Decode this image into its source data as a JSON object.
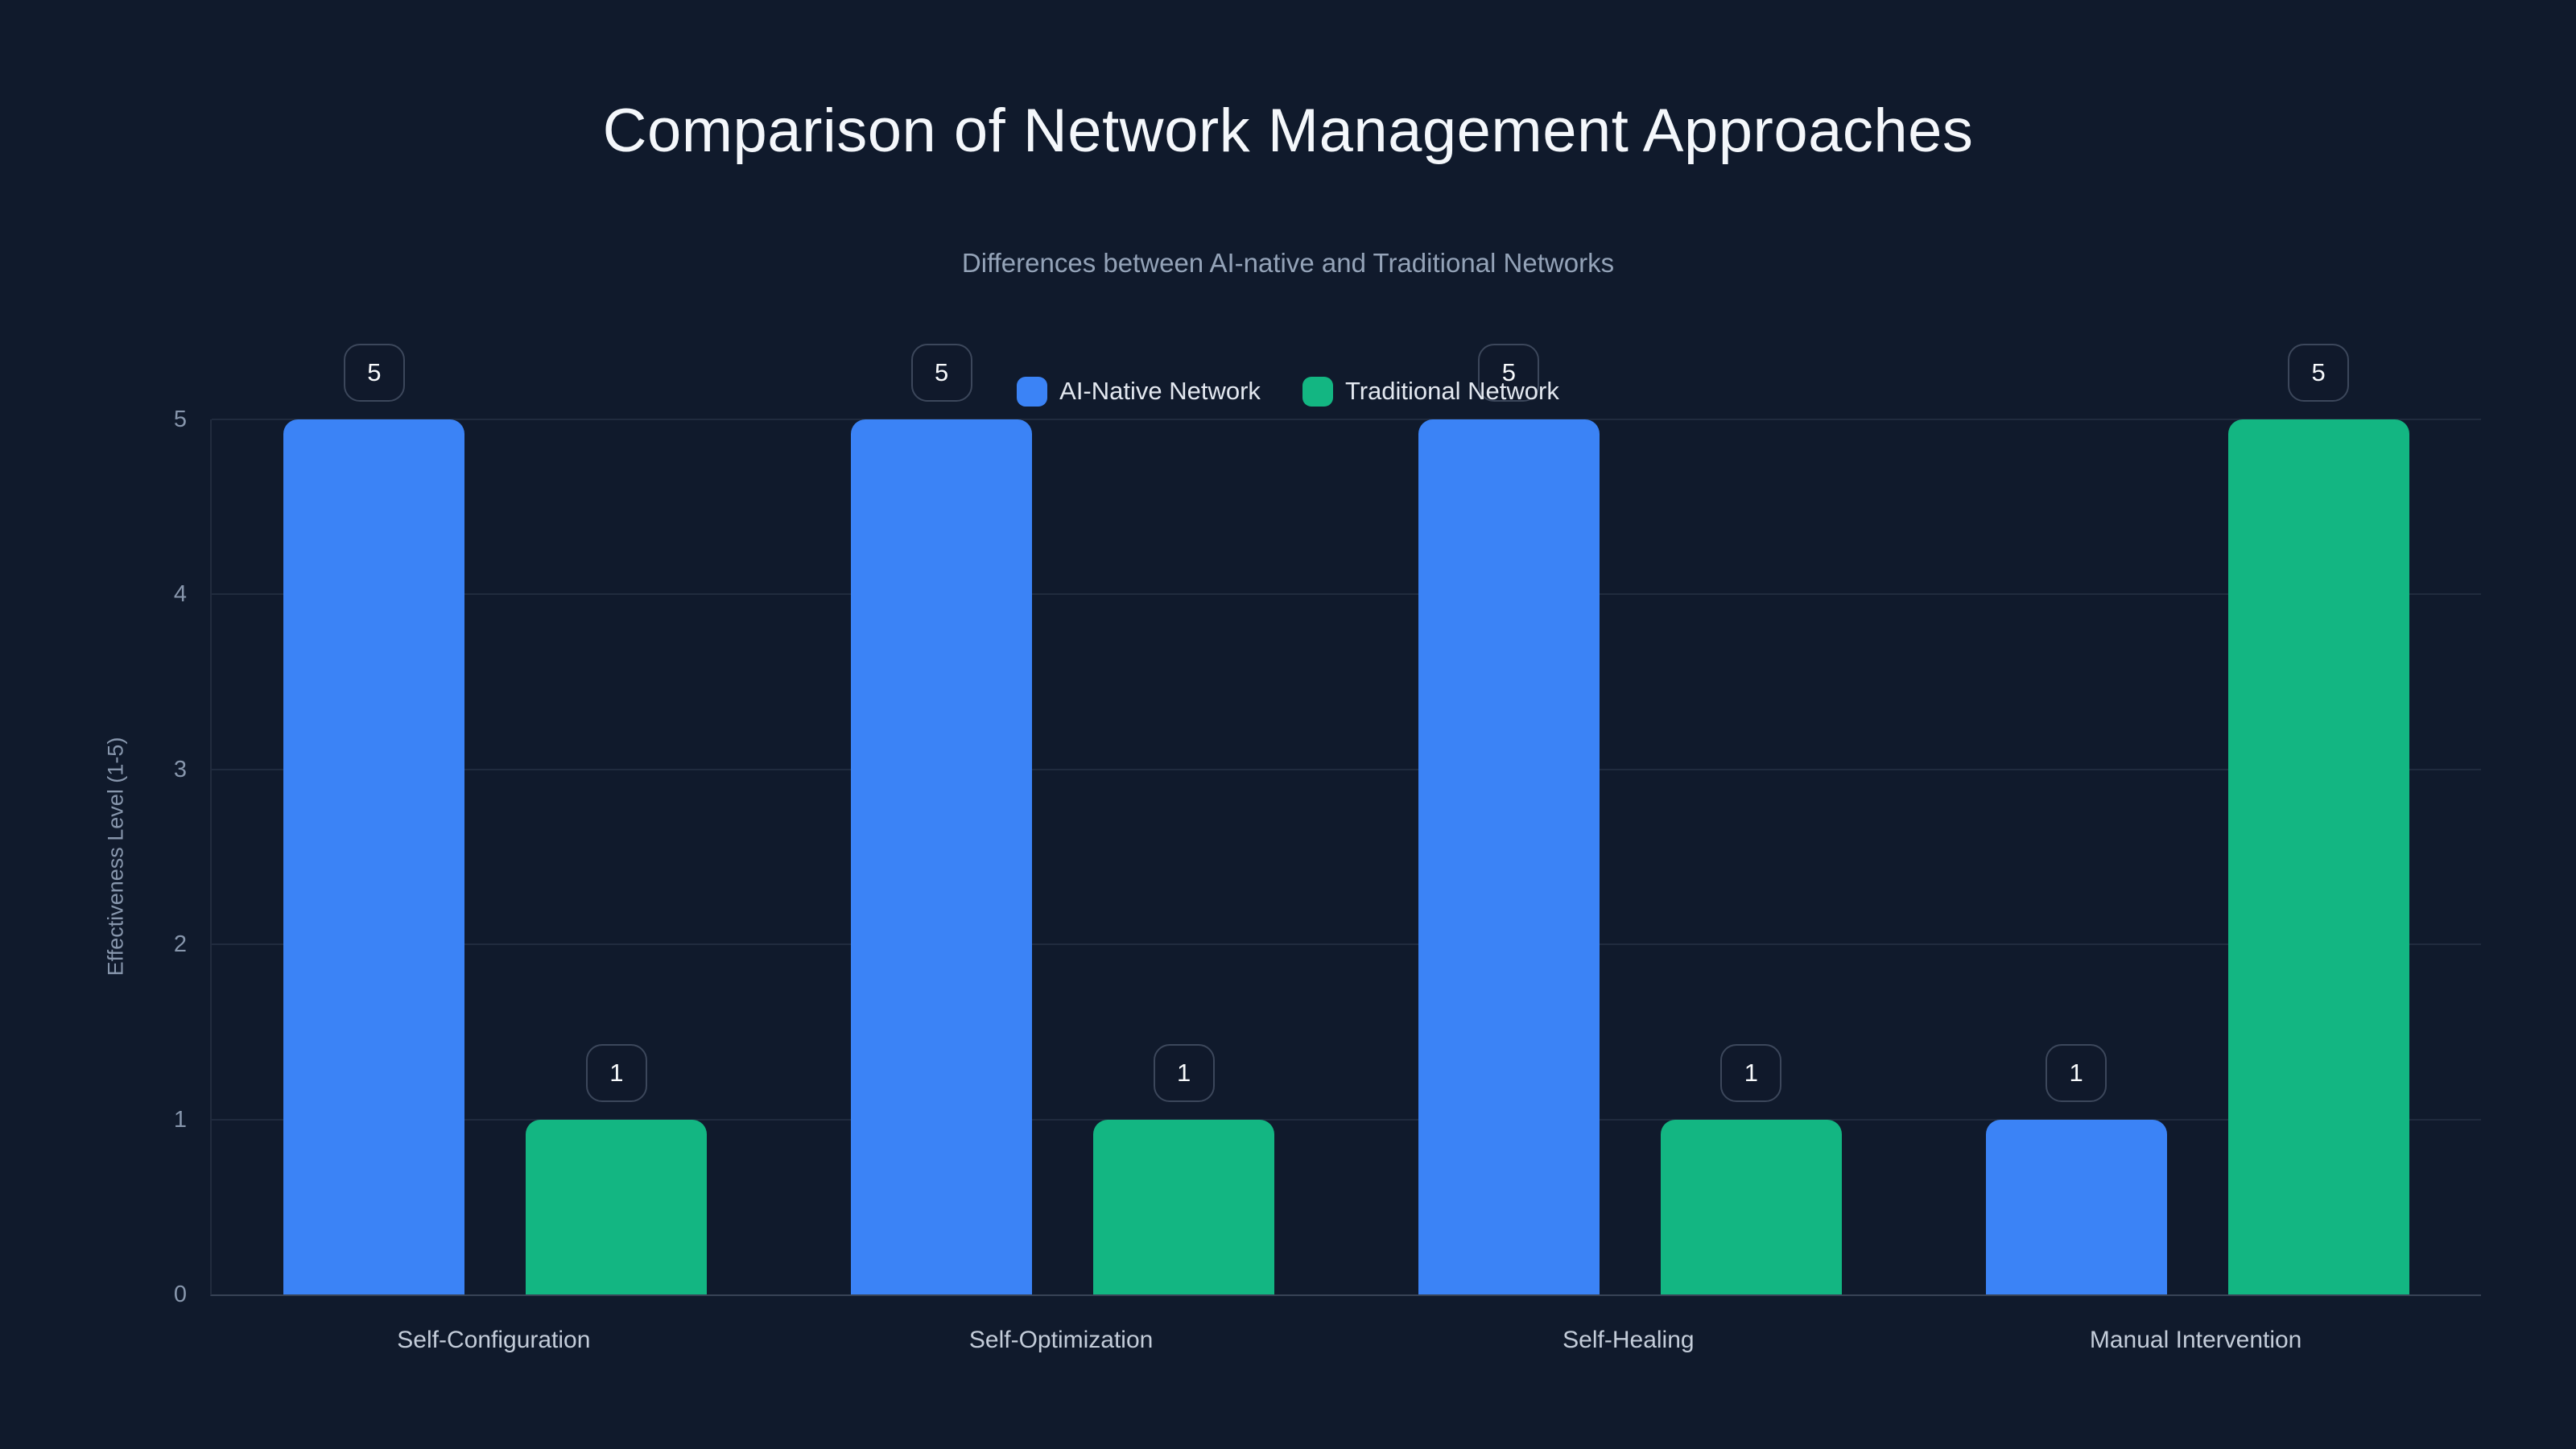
{
  "title": "Comparison of Network Management Approaches",
  "subtitle": "Differences between AI-native and Traditional Networks",
  "colors": {
    "background": "#101a2c",
    "ai_native": "#3b83f6",
    "traditional": "#13b682",
    "title_text": "#f4f7fb",
    "subtitle_text": "#94a3b8",
    "legend_text": "#e3e8f0",
    "tick_text": "#8796ac",
    "xlabel_text": "#c3ccd9",
    "gridline": "rgba(148,163,184,0.13)",
    "axis_line": "rgba(148,163,184,0.30)",
    "badge_border": "#3c475b",
    "badge_text": "#f8fafc"
  },
  "chart_data": {
    "type": "bar",
    "categories": [
      "Self-Configuration",
      "Self-Optimization",
      "Self-Healing",
      "Manual Intervention"
    ],
    "series": [
      {
        "name": "AI-Native Network",
        "color_key": "ai_native",
        "values": [
          5,
          5,
          5,
          1
        ]
      },
      {
        "name": "Traditional Network",
        "color_key": "traditional",
        "values": [
          1,
          1,
          1,
          5
        ]
      }
    ],
    "title": "Comparison of Network Management Approaches",
    "subtitle": "Differences between AI-native and Traditional Networks",
    "xlabel": "",
    "ylabel": "Effectiveness Level (1-5)",
    "ylim": [
      0,
      5
    ],
    "yticks": [
      0,
      1,
      2,
      3,
      4,
      5
    ],
    "grid": true,
    "legend_position": "top-center",
    "data_labels": "boxed"
  }
}
